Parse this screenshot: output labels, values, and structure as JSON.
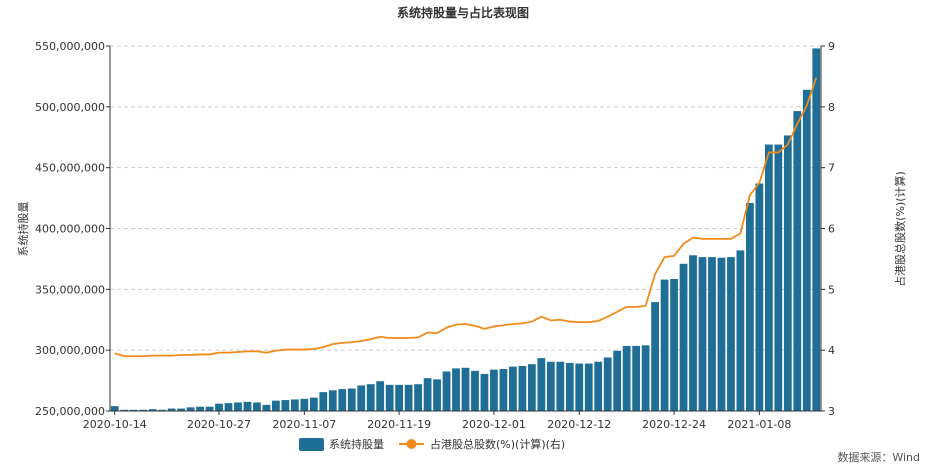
{
  "colors": {
    "bar": "#1f6e96",
    "line": "#f28a1b"
  },
  "chart_data": {
    "type": "bar",
    "title": "系统持股量与占比表现图",
    "ylabel_left": "系统持股量",
    "ylabel_right": "占港股总股数(%)(计算)",
    "ylim_left": [
      250000000,
      550000000
    ],
    "ylim_right": [
      3,
      9
    ],
    "yticks_left": [
      "250,000,000",
      "300,000,000",
      "350,000,000",
      "400,000,000",
      "450,000,000",
      "500,000,000",
      "550,000,000"
    ],
    "yticks_right": [
      "3",
      "4",
      "5",
      "6",
      "7",
      "8",
      "9"
    ],
    "xtick_labels": [
      {
        "index": 0,
        "label": "2020-10-14"
      },
      {
        "index": 11,
        "label": "2020-10-27"
      },
      {
        "index": 20,
        "label": "2020-11-07"
      },
      {
        "index": 30,
        "label": "2020-11-19"
      },
      {
        "index": 40,
        "label": "2020-12-01"
      },
      {
        "index": 49,
        "label": "2020-12-12"
      },
      {
        "index": 59,
        "label": "2020-12-24"
      },
      {
        "index": 68,
        "label": "2021-01-08"
      }
    ],
    "grid": true,
    "legend_position": "bottom-center",
    "series": [
      {
        "name": "系统持股量",
        "type": "bar",
        "axis": "left",
        "values": [
          254000000,
          251000000,
          251000000,
          251000000,
          251500000,
          251000000,
          252000000,
          252000000,
          253000000,
          253500000,
          253500000,
          256000000,
          256500000,
          257000000,
          257500000,
          257000000,
          255000000,
          258500000,
          259000000,
          259500000,
          260000000,
          261000000,
          265500000,
          267000000,
          268000000,
          268500000,
          271000000,
          272000000,
          274500000,
          271500000,
          271500000,
          271500000,
          272000000,
          277000000,
          276000000,
          282500000,
          285000000,
          285500000,
          283000000,
          280500000,
          284000000,
          284500000,
          286500000,
          287000000,
          288500000,
          293500000,
          290500000,
          290500000,
          289500000,
          289000000,
          289000000,
          290500000,
          294000000,
          299500000,
          303500000,
          303500000,
          304000000,
          339500000,
          358000000,
          358500000,
          371000000,
          378000000,
          376500000,
          376500000,
          376000000,
          376500000,
          382000000,
          421000000,
          437000000,
          469000000,
          469000000,
          476500000,
          496500000,
          514000000,
          548000000
        ]
      },
      {
        "name": "占港股总股数(%)(计算)(右)",
        "type": "line",
        "axis": "right",
        "values": [
          3.95,
          3.9,
          3.9,
          3.9,
          3.91,
          3.91,
          3.91,
          3.92,
          3.92,
          3.93,
          3.93,
          3.96,
          3.96,
          3.97,
          3.98,
          3.98,
          3.96,
          3.99,
          4.01,
          4.01,
          4.01,
          4.02,
          4.05,
          4.1,
          4.12,
          4.13,
          4.15,
          4.18,
          4.22,
          4.2,
          4.2,
          4.2,
          4.21,
          4.29,
          4.28,
          4.37,
          4.42,
          4.43,
          4.4,
          4.35,
          4.39,
          4.41,
          4.43,
          4.44,
          4.47,
          4.55,
          4.49,
          4.5,
          4.47,
          4.46,
          4.46,
          4.48,
          4.55,
          4.63,
          4.71,
          4.71,
          4.73,
          5.25,
          5.53,
          5.55,
          5.75,
          5.85,
          5.83,
          5.83,
          5.83,
          5.83,
          5.92,
          6.55,
          6.75,
          7.25,
          7.25,
          7.38,
          7.72,
          8.02,
          8.48
        ]
      }
    ]
  },
  "legend": {
    "bar_label": "系统持股量",
    "line_label": "占港股总股数(%)(计算)(右)"
  },
  "source": "数据来源：Wind"
}
